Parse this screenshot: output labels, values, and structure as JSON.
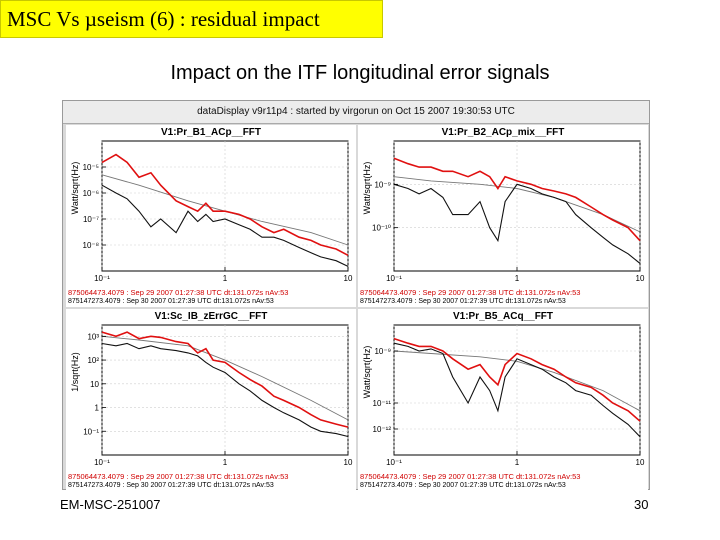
{
  "slide": {
    "title": "MSC Vs µseism (6) : residual impact",
    "subtitle": "Impact on the ITF longitudinal error signals",
    "footer_left": "EM-MSC-251007",
    "page_number": "30"
  },
  "figure": {
    "header": "dataDisplay v9r11p4 : started by virgorun on Oct 15 2007 19:30:53 UTC"
  },
  "colors": {
    "red": "#e01010",
    "black": "#111111",
    "grey": "#777777",
    "title_bg": "#ffff00"
  },
  "chart_data": [
    {
      "type": "line",
      "title": "V1:Pr_B1_ACp__FFT",
      "ylabel": "Watt/sqrt(Hz)",
      "xscale": "log",
      "yscale": "log",
      "xlim": [
        0.1,
        10
      ],
      "ylim": [
        1e-09,
        0.0001
      ],
      "xticks": [
        "10⁻¹",
        "1",
        "10"
      ],
      "yticks": [
        {
          "label": "10⁻⁵",
          "value": 1e-05
        },
        {
          "label": "10⁻⁶",
          "value": 1e-06
        },
        {
          "label": "10⁻⁷",
          "value": 1e-07
        },
        {
          "label": "10⁻⁸",
          "value": 1e-08
        }
      ],
      "footer_red": "875064473.4079 : Sep 29 2007 01:27:38 UTC dt:131.072s nAv:53",
      "footer_black": "875147273.4079 : Sep 30 2007 01:27:39 UTC dt:131.072s nAv:53",
      "series": [
        {
          "name": "Sep 29 2007 (red)",
          "color": "red",
          "x": [
            0.1,
            0.13,
            0.16,
            0.2,
            0.25,
            0.3,
            0.4,
            0.5,
            0.6,
            0.7,
            0.8,
            1,
            1.3,
            1.6,
            2,
            2.5,
            3,
            4,
            5,
            6,
            8,
            10
          ],
          "y": [
            1.5e-05,
            3e-05,
            1.5e-05,
            4e-06,
            6e-06,
            2e-06,
            5e-07,
            3e-07,
            2e-07,
            4e-07,
            2e-07,
            2e-07,
            1.5e-07,
            1e-07,
            5e-08,
            3e-08,
            4e-08,
            2e-08,
            1.5e-08,
            1e-08,
            7e-09,
            4e-09
          ]
        },
        {
          "name": "Sep 30 2007 (black)",
          "color": "black",
          "x": [
            0.1,
            0.13,
            0.16,
            0.2,
            0.25,
            0.3,
            0.4,
            0.5,
            0.6,
            0.7,
            0.8,
            1,
            1.3,
            1.6,
            2,
            2.5,
            3,
            4,
            5,
            6,
            8,
            10
          ],
          "y": [
            2e-06,
            1e-06,
            6e-07,
            2e-07,
            5e-08,
            1e-07,
            3e-08,
            2e-07,
            8e-08,
            1.5e-07,
            8e-08,
            1e-07,
            6e-08,
            4e-08,
            2e-08,
            2e-08,
            1.5e-08,
            8e-09,
            5e-09,
            3.5e-09,
            2.5e-09,
            1.5e-09
          ]
        },
        {
          "name": "reference (grey)",
          "color": "grey",
          "x": [
            0.1,
            0.2,
            0.5,
            1,
            2,
            5,
            10
          ],
          "y": [
            5e-06,
            2e-06,
            5e-07,
            2e-07,
            8e-08,
            3e-08,
            1e-08
          ]
        }
      ]
    },
    {
      "type": "line",
      "title": "V1:Pr_B2_ACp_mix__FFT",
      "ylabel": "Watt/sqrt(Hz)",
      "xscale": "log",
      "yscale": "log",
      "xlim": [
        0.1,
        10
      ],
      "ylim": [
        1e-11,
        1e-08
      ],
      "xticks": [
        "10⁻¹",
        "1",
        "10"
      ],
      "yticks": [
        {
          "label": "10⁻⁹",
          "value": 1e-09
        },
        {
          "label": "10⁻¹⁰",
          "value": 1e-10
        }
      ],
      "footer_red": "875064473.4079 : Sep 29 2007 01:27:38 UTC dt:131.072s nAv:53",
      "footer_black": "875147273.4079 : Sep 30 2007 01:27:39 UTC dt:131.072s nAv:53",
      "series": [
        {
          "name": "Sep 29 2007 (red)",
          "color": "red",
          "x": [
            0.1,
            0.13,
            0.16,
            0.2,
            0.25,
            0.3,
            0.4,
            0.5,
            0.6,
            0.7,
            0.8,
            1,
            1.3,
            1.6,
            2,
            2.5,
            3,
            4,
            5,
            6,
            8,
            10
          ],
          "y": [
            4e-09,
            3e-09,
            2.5e-09,
            2.5e-09,
            2e-09,
            2e-09,
            1.5e-09,
            2e-09,
            1.5e-09,
            8e-10,
            1.5e-09,
            1.2e-09,
            1e-09,
            8e-10,
            7e-10,
            6e-10,
            5e-10,
            3e-10,
            2e-10,
            1.5e-10,
            1e-10,
            5e-11
          ]
        },
        {
          "name": "Sep 30 2007 (black)",
          "color": "black",
          "x": [
            0.1,
            0.13,
            0.16,
            0.2,
            0.25,
            0.3,
            0.4,
            0.5,
            0.6,
            0.7,
            0.8,
            1,
            1.3,
            1.6,
            2,
            2.5,
            3,
            4,
            5,
            6,
            8,
            10
          ],
          "y": [
            1e-09,
            8e-10,
            6e-10,
            8e-10,
            5e-10,
            2e-10,
            2e-10,
            4e-10,
            1e-10,
            5e-11,
            4e-10,
            1e-09,
            8e-10,
            6e-10,
            5e-10,
            4e-10,
            2e-10,
            1e-10,
            6e-11,
            4e-11,
            2.5e-11,
            1.5e-11
          ]
        },
        {
          "name": "reference (grey)",
          "color": "grey",
          "x": [
            0.1,
            0.2,
            0.5,
            1,
            2,
            5,
            10
          ],
          "y": [
            1.5e-09,
            1.2e-09,
            1e-09,
            8e-10,
            5e-10,
            2e-10,
            8e-11
          ]
        }
      ]
    },
    {
      "type": "line",
      "title": "V1:Sc_IB_zErrGC__FFT",
      "ylabel": "1/sqrt(Hz)",
      "xscale": "log",
      "yscale": "log",
      "xlim": [
        0.1,
        10
      ],
      "ylim": [
        0.01,
        3000
      ],
      "xticks": [
        "10⁻¹",
        "1",
        "10"
      ],
      "yticks": [
        {
          "label": "10³",
          "value": 1000
        },
        {
          "label": "10²",
          "value": 100
        },
        {
          "label": "10",
          "value": 10
        },
        {
          "label": "1",
          "value": 1
        },
        {
          "label": "10⁻¹",
          "value": 0.1
        }
      ],
      "footer_red": "875064473.4079 : Sep 29 2007 01:27:38 UTC dt:131.072s nAv:53",
      "footer_black": "875147273.4079 : Sep 30 2007 01:27:39 UTC dt:131.072s nAv:53",
      "series": [
        {
          "name": "Sep 29 2007 (red)",
          "color": "red",
          "x": [
            0.1,
            0.13,
            0.16,
            0.2,
            0.25,
            0.3,
            0.4,
            0.5,
            0.6,
            0.7,
            0.8,
            1,
            1.3,
            1.6,
            2,
            2.5,
            3,
            4,
            5,
            6,
            8,
            10
          ],
          "y": [
            1500,
            1000,
            1500,
            800,
            1000,
            900,
            600,
            500,
            200,
            300,
            100,
            80,
            30,
            15,
            8,
            3,
            2,
            1,
            0.5,
            0.3,
            0.2,
            0.15
          ]
        },
        {
          "name": "Sep 30 2007 (black)",
          "color": "black",
          "x": [
            0.1,
            0.13,
            0.16,
            0.2,
            0.25,
            0.3,
            0.4,
            0.5,
            0.6,
            0.7,
            0.8,
            1,
            1.3,
            1.6,
            2,
            2.5,
            3,
            4,
            5,
            6,
            8,
            10
          ],
          "y": [
            500,
            400,
            500,
            300,
            400,
            300,
            250,
            200,
            150,
            80,
            50,
            30,
            10,
            5,
            2,
            1,
            0.6,
            0.3,
            0.15,
            0.1,
            0.08,
            0.06
          ]
        },
        {
          "name": "reference (grey)",
          "color": "grey",
          "x": [
            0.1,
            0.2,
            0.5,
            1,
            2,
            5,
            10
          ],
          "y": [
            1000,
            700,
            400,
            100,
            20,
            2,
            0.3
          ]
        }
      ]
    },
    {
      "type": "line",
      "title": "V1:Pr_B5_ACq__FFT",
      "ylabel": "Watt/sqrt(Hz)",
      "xscale": "log",
      "yscale": "log",
      "xlim": [
        0.1,
        10
      ],
      "ylim": [
        1e-13,
        1e-08
      ],
      "xticks": [
        "10⁻¹",
        "1",
        "10"
      ],
      "yticks": [
        {
          "label": "10⁻⁹",
          "value": 1e-09
        },
        {
          "label": "10⁻¹¹",
          "value": 1e-11
        },
        {
          "label": "10⁻¹²",
          "value": 1e-12
        }
      ],
      "footer_red": "875064473.4079 : Sep 29 2007 01:27:38 UTC dt:131.072s nAv:53",
      "footer_black": "875147273.4079 : Sep 30 2007 01:27:39 UTC dt:131.072s nAv:53",
      "series": [
        {
          "name": "Sep 29 2007 (red)",
          "color": "red",
          "x": [
            0.1,
            0.13,
            0.16,
            0.2,
            0.25,
            0.3,
            0.4,
            0.5,
            0.6,
            0.7,
            0.8,
            1,
            1.3,
            1.6,
            2,
            2.5,
            3,
            4,
            5,
            6,
            8,
            10
          ],
          "y": [
            3e-09,
            2e-09,
            1.5e-09,
            1.5e-09,
            1e-09,
            5e-10,
            2e-10,
            3e-10,
            1e-10,
            5e-11,
            3e-10,
            8e-10,
            5e-10,
            3e-10,
            2e-10,
            1e-10,
            6e-11,
            4e-11,
            2e-11,
            1e-11,
            5e-12,
            2e-12
          ]
        },
        {
          "name": "Sep 30 2007 (black)",
          "color": "black",
          "x": [
            0.1,
            0.13,
            0.16,
            0.2,
            0.25,
            0.3,
            0.4,
            0.5,
            0.6,
            0.7,
            0.8,
            1,
            1.3,
            1.6,
            2,
            2.5,
            3,
            4,
            5,
            6,
            8,
            10
          ],
          "y": [
            2e-09,
            1.5e-09,
            1e-09,
            1.2e-09,
            8e-10,
            1e-10,
            1e-11,
            1e-10,
            3e-11,
            5e-12,
            1e-10,
            5e-10,
            3e-10,
            2e-10,
            1e-10,
            6e-11,
            3e-11,
            2e-11,
            8e-12,
            4e-12,
            1.5e-12,
            5e-13
          ]
        },
        {
          "name": "reference (grey)",
          "color": "grey",
          "x": [
            0.1,
            0.2,
            0.5,
            1,
            2,
            5,
            10
          ],
          "y": [
            1e-09,
            8e-10,
            6e-10,
            4e-10,
            1.5e-10,
            3e-11,
            5e-12
          ]
        }
      ]
    }
  ]
}
